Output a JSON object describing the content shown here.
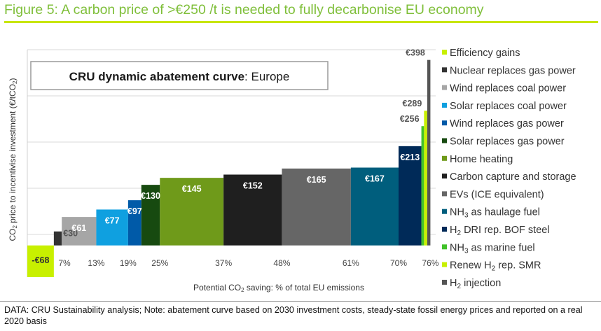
{
  "figure_title": "Figure 5: A carbon price of >€250 /t is needed to fully decarbonise EU economy",
  "footnote": "DATA: CRU Sustainability analysis; Note: abatement curve based on 2030 investment costs, steady-state fossil energy prices and reported on a real 2020 basis",
  "chart_data": {
    "type": "bar",
    "subtype": "variable-width abatement cost curve",
    "annotation_box": {
      "bold": "CRU dynamic abatement curve",
      "rest": ": Europe"
    },
    "ylabel": {
      "pre": "CO",
      "sub": "2",
      "mid": " price to incentivise investment (€/tCO",
      "sub2": "2",
      "post": ")"
    },
    "xlabel": {
      "pre": "Potential CO",
      "sub": "2",
      "post": " saving:  % of total EU emissions"
    },
    "ylim": [
      -68,
      420
    ],
    "xlim": [
      0,
      77
    ],
    "grid": true,
    "legend_position": "right",
    "x_tick_labels": [
      {
        "x": 7,
        "label": "7%"
      },
      {
        "x": 13,
        "label": "13%"
      },
      {
        "x": 19,
        "label": "19%"
      },
      {
        "x": 25,
        "label": "25%"
      },
      {
        "x": 37,
        "label": "37%"
      },
      {
        "x": 48,
        "label": "48%"
      },
      {
        "x": 61,
        "label": "61%"
      },
      {
        "x": 70,
        "label": "70%"
      },
      {
        "x": 76,
        "label": "76%"
      }
    ],
    "series": [
      {
        "name": "Efficiency gains",
        "name_parts": [
          "Efficiency gains"
        ],
        "x0": 0,
        "x1": 5,
        "value": -68,
        "label": "-€68",
        "color": "#c8f000"
      },
      {
        "name": "Nuclear replaces gas power",
        "name_parts": [
          "Nuclear replaces gas power"
        ],
        "x0": 5,
        "x1": 6.5,
        "value": 30,
        "label": "€30",
        "color": "#333333"
      },
      {
        "name": "Wind replaces coal power",
        "name_parts": [
          "Wind replaces coal power"
        ],
        "x0": 6.5,
        "x1": 13,
        "value": 61,
        "label": "€61",
        "color": "#a6a6a6"
      },
      {
        "name": "Solar replaces coal power",
        "name_parts": [
          "Solar replaces coal power"
        ],
        "x0": 13,
        "x1": 19,
        "value": 77,
        "label": "€77",
        "color": "#0fa0e0"
      },
      {
        "name": "Wind replaces gas power",
        "name_parts": [
          "Wind replaces gas power"
        ],
        "x0": 19,
        "x1": 21.5,
        "value": 97,
        "label": "€97",
        "color": "#005aa8"
      },
      {
        "name": "Solar replaces gas power",
        "name_parts": [
          "Solar replaces gas power"
        ],
        "x0": 21.5,
        "x1": 25,
        "value": 130,
        "label": "€130",
        "color": "#174a10"
      },
      {
        "name": "Home heating",
        "name_parts": [
          "Home heating"
        ],
        "x0": 25,
        "x1": 37,
        "value": 145,
        "label": "€145",
        "color": "#6f9a1a"
      },
      {
        "name": "Carbon capture and storage",
        "name_parts": [
          "Carbon capture and storage"
        ],
        "x0": 37,
        "x1": 48,
        "value": 152,
        "label": "€152",
        "color": "#1f1f1f"
      },
      {
        "name": "EVs (ICE equivalent)",
        "name_parts": [
          "EVs (ICE equivalent)"
        ],
        "x0": 48,
        "x1": 61,
        "value": 165,
        "label": "€165",
        "color": "#666666"
      },
      {
        "name": "NH3 as haulage fuel",
        "name_parts": [
          "NH",
          "3",
          " as haulage fuel"
        ],
        "x0": 61,
        "x1": 70,
        "value": 167,
        "label": "€167",
        "color": "#005e7d"
      },
      {
        "name": "H2 DRI rep. BOF steel",
        "name_parts": [
          "H",
          "2",
          " DRI rep. BOF steel"
        ],
        "x0": 70,
        "x1": 74.3,
        "value": 213,
        "label": "€213",
        "color": "#002a58"
      },
      {
        "name": "NH3 as marine fuel",
        "name_parts": [
          "NH",
          "3",
          " as marine fuel"
        ],
        "x0": 74.3,
        "x1": 74.8,
        "value": 256,
        "label": "€256",
        "color": "#42c22a"
      },
      {
        "name": "Renew H2 rep. SMR",
        "name_parts": [
          "Renew H",
          "2",
          " rep. SMR"
        ],
        "x0": 74.8,
        "x1": 75.4,
        "value": 289,
        "label": "€289",
        "color": "#c8f000"
      },
      {
        "name": "H2 injection",
        "name_parts": [
          "H",
          "2",
          " injection"
        ],
        "x0": 75.4,
        "x1": 76,
        "value": 398,
        "label": "€398",
        "color": "#555555"
      }
    ]
  }
}
